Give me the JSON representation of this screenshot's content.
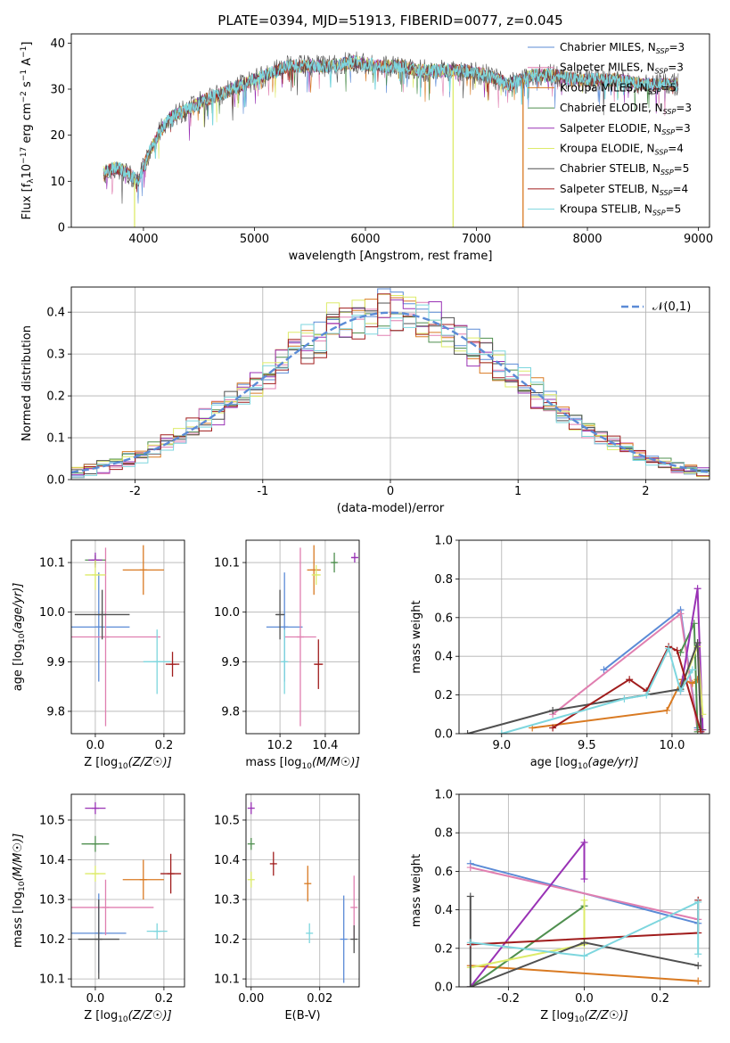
{
  "figure": {
    "title": "PLATE=0394, MJD=51913, FIBERID=0077, z=0.045"
  },
  "colors": {
    "Chabrier MILES": "#5B8BD6",
    "Salpeter MILES": "#E07FB0",
    "Kroupa MILES": "#D97A22",
    "Chabrier ELODIE": "#4F8F4F",
    "Salpeter ELODIE": "#9932B5",
    "Kroupa ELODIE": "#DDEB6A",
    "Chabrier STELIB": "#505050",
    "Salpeter STELIB": "#A01C1C",
    "Kroupa STELIB": "#7DD6DE",
    "normal": "#5B8BD6",
    "grid": "#b0b0b0"
  },
  "chart_data": [
    {
      "id": "spectrum",
      "type": "line",
      "xlabel": "wavelength [Angstrom, rest frame]",
      "ylabel": "Flux [f_λ10^-17 erg cm^-2 s^-1 A^-1]",
      "xlim": [
        3350,
        9100
      ],
      "ylim": [
        0,
        42
      ],
      "xticks": [
        4000,
        5000,
        6000,
        7000,
        8000,
        9000
      ],
      "yticks": [
        0,
        10,
        20,
        30,
        40
      ],
      "grid": false,
      "legend_position": "top-right",
      "legend": [
        {
          "name": "Chabrier MILES",
          "nssp": "3"
        },
        {
          "name": "Salpeter MILES",
          "nssp": "3"
        },
        {
          "name": "Kroupa MILES",
          "nssp": "5"
        },
        {
          "name": "Chabrier ELODIE",
          "nssp": "3"
        },
        {
          "name": "Salpeter ELODIE",
          "nssp": "3"
        },
        {
          "name": "Kroupa ELODIE",
          "nssp": "4"
        },
        {
          "name": "Chabrier STELIB",
          "nssp": "5"
        },
        {
          "name": "Salpeter STELIB",
          "nssp": "4"
        },
        {
          "name": "Kroupa STELIB",
          "nssp": "5"
        }
      ],
      "continuum_x": [
        3650,
        3750,
        3850,
        3950,
        4050,
        4150,
        4250,
        4350,
        4500,
        4700,
        4900,
        5100,
        5300,
        5500,
        5700,
        5900,
        6100,
        6300,
        6500,
        6700,
        6900,
        7100,
        7300,
        7500,
        7700,
        7900,
        8100,
        8300,
        8500,
        8700,
        8820
      ],
      "continuum_y": [
        12,
        13,
        12,
        10,
        16,
        21,
        24,
        25,
        27,
        29,
        31,
        33,
        35,
        35,
        35,
        36,
        35,
        35,
        34,
        34,
        34,
        33,
        31,
        33,
        33,
        32,
        32,
        32,
        31,
        31,
        31
      ],
      "drop_lines": [
        {
          "series": "Kroupa ELODIE",
          "x": 3920
        },
        {
          "series": "Kroupa ELODIE",
          "x": 6790
        },
        {
          "series": "Kroupa MILES",
          "x": 7420
        }
      ]
    },
    {
      "id": "residuals",
      "type": "histogram",
      "xlabel": "(data-model)/error",
      "ylabel": "Normed distribution",
      "xlim": [
        -2.5,
        2.5
      ],
      "ylim": [
        0,
        0.46
      ],
      "xticks": [
        -2,
        -1,
        0,
        1,
        2
      ],
      "yticks": [
        0.0,
        0.1,
        0.2,
        0.3,
        0.4
      ],
      "grid": true,
      "legend_position": "top-right",
      "reference_curve": {
        "name": "𝒩(0,1)",
        "mean": 0,
        "sigma": 1
      },
      "bin_width": 0.1
    },
    {
      "id": "age_vs_Z",
      "type": "errorbar",
      "xlabel": "Z [log10(Z/Z☉)]",
      "ylabel": "age [log10(age/yr)]",
      "xlim": [
        -0.07,
        0.26
      ],
      "ylim": [
        9.755,
        10.145
      ],
      "xticks": [
        0.0,
        0.2
      ],
      "yticks": [
        9.8,
        9.9,
        10.0,
        10.1
      ],
      "grid": true,
      "points": [
        {
          "series": "Chabrier MILES",
          "x": 0.01,
          "y": 9.97,
          "xerr": 0.09,
          "yerr": 0.11
        },
        {
          "series": "Salpeter MILES",
          "x": 0.03,
          "y": 9.95,
          "xerr": 0.16,
          "yerr": 0.18
        },
        {
          "series": "Kroupa MILES",
          "x": 0.14,
          "y": 10.085,
          "xerr": 0.06,
          "yerr": 0.05
        },
        {
          "series": "Chabrier ELODIE",
          "x": 0.0,
          "y": 10.105,
          "xerr": 0.03,
          "yerr": 0.01
        },
        {
          "series": "Salpeter ELODIE",
          "x": 0.0,
          "y": 10.105,
          "xerr": 0.02,
          "yerr": 0.015
        },
        {
          "series": "Kroupa ELODIE",
          "x": 0.0,
          "y": 10.075,
          "xerr": 0.03,
          "yerr": 0.03
        },
        {
          "series": "Chabrier STELIB",
          "x": 0.02,
          "y": 9.995,
          "xerr": 0.08,
          "yerr": 0.05
        },
        {
          "series": "Salpeter STELIB",
          "x": 0.225,
          "y": 9.895,
          "xerr": 0.02,
          "yerr": 0.025
        },
        {
          "series": "Kroupa STELIB",
          "x": 0.18,
          "y": 9.9,
          "xerr": 0.04,
          "yerr": 0.065
        }
      ]
    },
    {
      "id": "age_vs_mass",
      "type": "errorbar",
      "xlabel": "mass [log10(M/M☉)]",
      "ylabel": "",
      "xlim": [
        10.05,
        10.55
      ],
      "ylim": [
        9.755,
        10.145
      ],
      "xticks": [
        10.2,
        10.4
      ],
      "yticks": [
        9.8,
        9.9,
        10.0,
        10.1
      ],
      "grid": true,
      "points": [
        {
          "series": "Chabrier MILES",
          "x": 10.22,
          "y": 9.97,
          "xerr": 0.08,
          "yerr": 0.11
        },
        {
          "series": "Salpeter MILES",
          "x": 10.29,
          "y": 9.95,
          "xerr": 0.07,
          "yerr": 0.18
        },
        {
          "series": "Kroupa MILES",
          "x": 10.35,
          "y": 10.085,
          "xerr": 0.03,
          "yerr": 0.05
        },
        {
          "series": "Chabrier ELODIE",
          "x": 10.44,
          "y": 10.1,
          "xerr": 0.01,
          "yerr": 0.02
        },
        {
          "series": "Salpeter ELODIE",
          "x": 10.53,
          "y": 10.11,
          "xerr": 0.015,
          "yerr": 0.01
        },
        {
          "series": "Kroupa ELODIE",
          "x": 10.36,
          "y": 10.075,
          "xerr": 0.02,
          "yerr": 0.02
        },
        {
          "series": "Chabrier STELIB",
          "x": 10.2,
          "y": 9.995,
          "xerr": 0.02,
          "yerr": 0.05
        },
        {
          "series": "Salpeter STELIB",
          "x": 10.37,
          "y": 9.895,
          "xerr": 0.02,
          "yerr": 0.05
        },
        {
          "series": "Kroupa STELIB",
          "x": 10.22,
          "y": 9.9,
          "xerr": 0.01,
          "yerr": 0.065
        }
      ]
    },
    {
      "id": "mass_weight_vs_age",
      "type": "line",
      "xlabel": "age [log10(age/yr)]",
      "ylabel": "mass weight",
      "xlim": [
        8.75,
        10.22
      ],
      "ylim": [
        0,
        1
      ],
      "xticks": [
        9.0,
        9.5,
        10.0
      ],
      "yticks": [
        0.0,
        0.2,
        0.4,
        0.6,
        0.8,
        1.0
      ],
      "grid": true,
      "series": [
        {
          "name": "Chabrier MILES",
          "x": [
            9.6,
            10.05,
            10.15
          ],
          "y": [
            0.33,
            0.64,
            0.03
          ]
        },
        {
          "name": "Salpeter MILES",
          "x": [
            9.3,
            10.05,
            10.15
          ],
          "y": [
            0.1,
            0.62,
            0.02
          ]
        },
        {
          "name": "Kroupa MILES",
          "x": [
            9.18,
            9.97,
            10.06,
            10.12,
            10.15
          ],
          "y": [
            0.03,
            0.12,
            0.28,
            0.26,
            0.28
          ]
        },
        {
          "name": "Chabrier ELODIE",
          "x": [
            10.05,
            10.13,
            10.15
          ],
          "y": [
            0.42,
            0.57,
            0.01
          ]
        },
        {
          "name": "Salpeter ELODIE",
          "x": [
            10.05,
            10.15,
            10.18
          ],
          "y": [
            0.22,
            0.75,
            0.02
          ]
        },
        {
          "name": "Kroupa ELODIE",
          "x": [
            10.05,
            10.15,
            10.18
          ],
          "y": [
            0.23,
            0.45,
            0.1
          ]
        },
        {
          "name": "Chabrier STELIB",
          "x": [
            8.8,
            9.3,
            10.05,
            10.15,
            10.17
          ],
          "y": [
            0.0,
            0.12,
            0.23,
            0.47,
            0.02
          ]
        },
        {
          "name": "Salpeter STELIB",
          "x": [
            9.3,
            9.75,
            9.85,
            9.98,
            10.03,
            10.17
          ],
          "y": [
            0.03,
            0.28,
            0.22,
            0.45,
            0.43,
            0.01
          ]
        },
        {
          "name": "Kroupa STELIB",
          "x": [
            9.0,
            9.72,
            9.85,
            9.98,
            10.05,
            10.12
          ],
          "y": [
            0.0,
            0.18,
            0.2,
            0.44,
            0.22,
            0.33
          ]
        }
      ]
    },
    {
      "id": "mass_vs_Z",
      "type": "errorbar",
      "xlabel": "Z [log10(Z/Z☉)]",
      "ylabel": "mass [log10(M/M☉)]",
      "xlim": [
        -0.07,
        0.26
      ],
      "ylim": [
        10.08,
        10.565
      ],
      "xticks": [
        0.0,
        0.2
      ],
      "yticks": [
        10.1,
        10.2,
        10.3,
        10.4,
        10.5
      ],
      "grid": true,
      "points": [
        {
          "series": "Chabrier MILES",
          "x": 0.01,
          "y": 10.215,
          "xerr": 0.08,
          "yerr": 0.1
        },
        {
          "series": "Salpeter MILES",
          "x": 0.03,
          "y": 10.28,
          "xerr": 0.14,
          "yerr": 0.07
        },
        {
          "series": "Kroupa MILES",
          "x": 0.14,
          "y": 10.35,
          "xerr": 0.06,
          "yerr": 0.05
        },
        {
          "series": "Chabrier ELODIE",
          "x": 0.0,
          "y": 10.44,
          "xerr": 0.04,
          "yerr": 0.02
        },
        {
          "series": "Salpeter ELODIE",
          "x": 0.0,
          "y": 10.53,
          "xerr": 0.03,
          "yerr": 0.015
        },
        {
          "series": "Kroupa ELODIE",
          "x": 0.0,
          "y": 10.365,
          "xerr": 0.03,
          "yerr": 0.02
        },
        {
          "series": "Chabrier STELIB",
          "x": 0.01,
          "y": 10.2,
          "xerr": 0.06,
          "yerr": 0.1
        },
        {
          "series": "Salpeter STELIB",
          "x": 0.22,
          "y": 10.365,
          "xerr": 0.03,
          "yerr": 0.05
        },
        {
          "series": "Kroupa STELIB",
          "x": 0.18,
          "y": 10.22,
          "xerr": 0.03,
          "yerr": 0.02
        }
      ]
    },
    {
      "id": "mass_vs_ebv",
      "type": "errorbar",
      "xlabel": "E(B-V)",
      "ylabel": "",
      "xlim": [
        -0.0015,
        0.0315
      ],
      "ylim": [
        10.08,
        10.565
      ],
      "xticks": [
        0.0,
        0.02
      ],
      "yticks": [
        10.1,
        10.2,
        10.3,
        10.4,
        10.5
      ],
      "grid": true,
      "points": [
        {
          "series": "Chabrier MILES",
          "x": 0.027,
          "y": 10.2,
          "xerr": 0,
          "yerr": 0.11
        },
        {
          "series": "Salpeter MILES",
          "x": 0.03,
          "y": 10.28,
          "xerr": 0,
          "yerr": 0.08
        },
        {
          "series": "Kroupa MILES",
          "x": 0.0165,
          "y": 10.34,
          "xerr": 0,
          "yerr": 0.045
        },
        {
          "series": "Chabrier ELODIE",
          "x": 0.0,
          "y": 10.44,
          "xerr": 0,
          "yerr": 0.015
        },
        {
          "series": "Salpeter ELODIE",
          "x": 0.0,
          "y": 10.53,
          "xerr": 0,
          "yerr": 0.015
        },
        {
          "series": "Kroupa ELODIE",
          "x": 0.0,
          "y": 10.35,
          "xerr": 0,
          "yerr": 0.02
        },
        {
          "series": "Chabrier STELIB",
          "x": 0.03,
          "y": 10.2,
          "xerr": 0,
          "yerr": 0.035
        },
        {
          "series": "Salpeter STELIB",
          "x": 0.0065,
          "y": 10.39,
          "xerr": 0,
          "yerr": 0.03
        },
        {
          "series": "Kroupa STELIB",
          "x": 0.017,
          "y": 10.215,
          "xerr": 0,
          "yerr": 0.025
        }
      ]
    },
    {
      "id": "mass_weight_vs_Z",
      "type": "line",
      "xlabel": "Z [log10(Z/Z☉)]",
      "ylabel": "mass weight",
      "xlim": [
        -0.33,
        0.33
      ],
      "ylim": [
        0,
        1
      ],
      "xticks": [
        -0.2,
        0.0,
        0.2
      ],
      "yticks": [
        0.0,
        0.2,
        0.4,
        0.6,
        0.8,
        1.0
      ],
      "grid": true,
      "series": [
        {
          "name": "Chabrier MILES",
          "x": [
            -0.3,
            0.3
          ],
          "y": [
            0.64,
            0.33
          ]
        },
        {
          "name": "Salpeter MILES",
          "x": [
            -0.3,
            0.3
          ],
          "y": [
            0.62,
            0.35
          ]
        },
        {
          "name": "Kroupa MILES",
          "x": [
            -0.3,
            0.3
          ],
          "y": [
            0.11,
            0.03
          ]
        },
        {
          "name": "Chabrier ELODIE",
          "x": [
            -0.3,
            0.0
          ],
          "y": [
            0.0,
            0.42
          ]
        },
        {
          "name": "Salpeter ELODIE",
          "x": [
            -0.3,
            0.0,
            0.0
          ],
          "y": [
            0.0,
            0.75,
            0.56
          ]
        },
        {
          "name": "Kroupa ELODIE",
          "x": [
            -0.3,
            0.0,
            0.0
          ],
          "y": [
            0.1,
            0.22,
            0.45
          ]
        },
        {
          "name": "Chabrier STELIB",
          "x": [
            -0.3,
            -0.3,
            0.0,
            0.3
          ],
          "y": [
            0.47,
            0.0,
            0.23,
            0.11
          ]
        },
        {
          "name": "Salpeter STELIB",
          "x": [
            -0.3,
            0.3,
            0.3
          ],
          "y": [
            0.22,
            0.28,
            0.45
          ]
        },
        {
          "name": "Kroupa STELIB",
          "x": [
            -0.3,
            0.0,
            0.3,
            0.3
          ],
          "y": [
            0.23,
            0.16,
            0.44,
            0.17
          ]
        }
      ]
    }
  ]
}
